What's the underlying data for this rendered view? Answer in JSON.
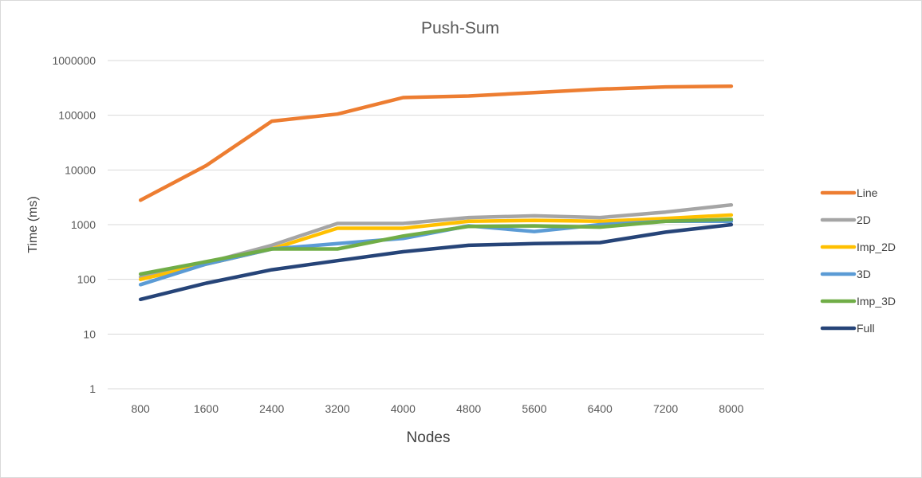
{
  "chart_data": {
    "type": "line",
    "title": "Push-Sum",
    "xlabel": "Nodes",
    "ylabel": "Time (ms)",
    "yscale": "log",
    "ylim": [
      1,
      1000000
    ],
    "yticks": [
      {
        "value": 1,
        "label": "1"
      },
      {
        "value": 10,
        "label": "10"
      },
      {
        "value": 100,
        "label": "100"
      },
      {
        "value": 1000,
        "label": "1000"
      },
      {
        "value": 10000,
        "label": "10000"
      },
      {
        "value": 100000,
        "label": "100000"
      },
      {
        "value": 1000000,
        "label": "1000000"
      }
    ],
    "categories": [
      "800",
      "1600",
      "2400",
      "3200",
      "4000",
      "4800",
      "5600",
      "6400",
      "7200",
      "8000"
    ],
    "grid": true,
    "legend_position": "right",
    "series": [
      {
        "name": "Line",
        "color": "#ED7D31",
        "values": [
          2800,
          12000,
          78000,
          105000,
          210000,
          225000,
          260000,
          300000,
          330000,
          340000
        ]
      },
      {
        "name": "2D",
        "color": "#A5A5A5",
        "values": [
          110,
          200,
          420,
          1050,
          1050,
          1350,
          1450,
          1350,
          1700,
          2300
        ]
      },
      {
        "name": "Imp_2D",
        "color": "#FFC000",
        "values": [
          100,
          190,
          360,
          860,
          860,
          1150,
          1200,
          1150,
          1300,
          1500
        ]
      },
      {
        "name": "3D",
        "color": "#5B9BD5",
        "values": [
          80,
          190,
          360,
          450,
          560,
          950,
          750,
          1000,
          1150,
          1150
        ]
      },
      {
        "name": "Imp_3D",
        "color": "#70AD47",
        "values": [
          125,
          210,
          360,
          360,
          620,
          930,
          950,
          900,
          1150,
          1250
        ]
      },
      {
        "name": "Full",
        "color": "#264478",
        "values": [
          43,
          85,
          150,
          220,
          320,
          420,
          450,
          470,
          730,
          1000
        ]
      }
    ]
  }
}
